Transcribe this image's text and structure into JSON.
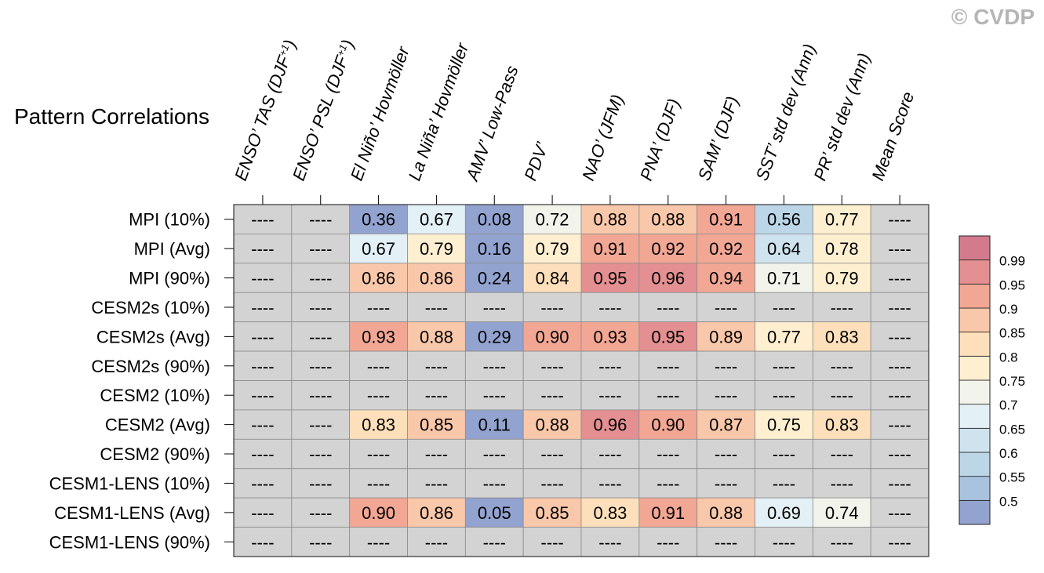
{
  "watermark": "© CVDP",
  "chart_data": {
    "type": "heatmap",
    "title": "Pattern Correlations",
    "columns": [
      {
        "parts": [
          {
            "t": "ENSO’ TAS (DJF"
          },
          {
            "t": "+1",
            "sup": true
          },
          {
            "t": ")"
          }
        ]
      },
      {
        "parts": [
          {
            "t": "ENSO’ PSL (DJF"
          },
          {
            "t": "+1",
            "sup": true
          },
          {
            "t": ")"
          }
        ]
      },
      {
        "parts": [
          {
            "t": "El Niño’ Hovmöller"
          }
        ]
      },
      {
        "parts": [
          {
            "t": "La Niña’ Hovmöller"
          }
        ]
      },
      {
        "parts": [
          {
            "t": "AMV’ Low-Pass"
          }
        ]
      },
      {
        "parts": [
          {
            "t": "PDV’"
          }
        ]
      },
      {
        "parts": [
          {
            "t": "NAO’ (JFM)"
          }
        ]
      },
      {
        "parts": [
          {
            "t": "PNA’ (DJF)"
          }
        ]
      },
      {
        "parts": [
          {
            "t": "SAM’ (DJF)"
          }
        ]
      },
      {
        "parts": [
          {
            "t": "SST’ std dev (Ann)"
          }
        ]
      },
      {
        "parts": [
          {
            "t": "PR’ std dev (Ann)"
          }
        ]
      },
      {
        "parts": [
          {
            "t": "Mean Score"
          }
        ]
      }
    ],
    "rows": [
      {
        "label": "MPI (10%)",
        "values": [
          "----",
          "----",
          "0.36",
          "0.67",
          "0.08",
          "0.72",
          "0.88",
          "0.88",
          "0.91",
          "0.56",
          "0.77",
          "----"
        ]
      },
      {
        "label": "MPI (Avg)",
        "values": [
          "----",
          "----",
          "0.67",
          "0.79",
          "0.16",
          "0.79",
          "0.91",
          "0.92",
          "0.92",
          "0.64",
          "0.78",
          "----"
        ]
      },
      {
        "label": "MPI (90%)",
        "values": [
          "----",
          "----",
          "0.86",
          "0.86",
          "0.24",
          "0.84",
          "0.95",
          "0.96",
          "0.94",
          "0.71",
          "0.79",
          "----"
        ]
      },
      {
        "label": "CESM2s (10%)",
        "values": [
          "----",
          "----",
          "----",
          "----",
          "----",
          "----",
          "----",
          "----",
          "----",
          "----",
          "----",
          "----"
        ]
      },
      {
        "label": "CESM2s (Avg)",
        "values": [
          "----",
          "----",
          "0.93",
          "0.88",
          "0.29",
          "0.90",
          "0.93",
          "0.95",
          "0.89",
          "0.77",
          "0.83",
          "----"
        ]
      },
      {
        "label": "CESM2s (90%)",
        "values": [
          "----",
          "----",
          "----",
          "----",
          "----",
          "----",
          "----",
          "----",
          "----",
          "----",
          "----",
          "----"
        ]
      },
      {
        "label": "CESM2 (10%)",
        "values": [
          "----",
          "----",
          "----",
          "----",
          "----",
          "----",
          "----",
          "----",
          "----",
          "----",
          "----",
          "----"
        ]
      },
      {
        "label": "CESM2 (Avg)",
        "values": [
          "----",
          "----",
          "0.83",
          "0.85",
          "0.11",
          "0.88",
          "0.96",
          "0.90",
          "0.87",
          "0.75",
          "0.83",
          "----"
        ]
      },
      {
        "label": "CESM2 (90%)",
        "values": [
          "----",
          "----",
          "----",
          "----",
          "----",
          "----",
          "----",
          "----",
          "----",
          "----",
          "----",
          "----"
        ]
      },
      {
        "label": "CESM1-LENS (10%)",
        "values": [
          "----",
          "----",
          "----",
          "----",
          "----",
          "----",
          "----",
          "----",
          "----",
          "----",
          "----",
          "----"
        ]
      },
      {
        "label": "CESM1-LENS (Avg)",
        "values": [
          "----",
          "----",
          "0.90",
          "0.86",
          "0.05",
          "0.85",
          "0.83",
          "0.91",
          "0.88",
          "0.69",
          "0.74",
          "----"
        ]
      },
      {
        "label": "CESM1-LENS (90%)",
        "values": [
          "----",
          "----",
          "----",
          "----",
          "----",
          "----",
          "----",
          "----",
          "----",
          "----",
          "----",
          "----"
        ]
      }
    ],
    "missing_color": "#d3d3d3",
    "colorbar": {
      "levels": [
        "0.5",
        "0.55",
        "0.6",
        "0.65",
        "0.7",
        "0.75",
        "0.8",
        "0.85",
        "0.9",
        "0.95",
        "0.99"
      ],
      "colors": [
        "#93a3cf",
        "#a9c3df",
        "#bcd6e8",
        "#cfe3ef",
        "#e3f0f6",
        "#f2f3ea",
        "#fdefd0",
        "#fde0bb",
        "#f9c7a9",
        "#f2a795",
        "#e48f91",
        "#d37b8d"
      ]
    }
  }
}
